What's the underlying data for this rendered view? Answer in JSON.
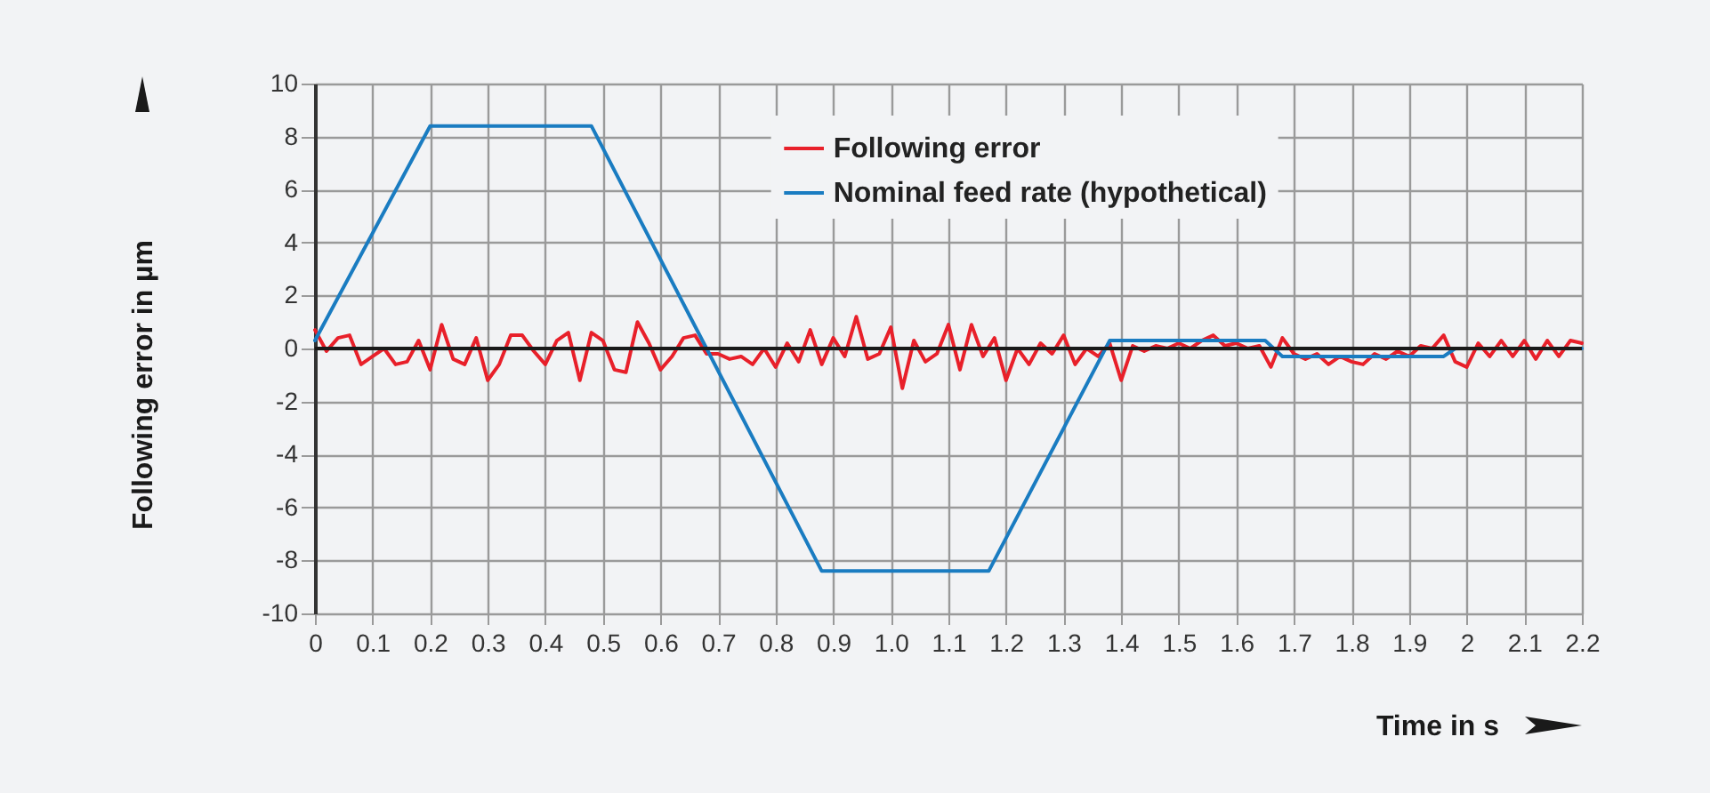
{
  "chart_data": {
    "type": "line",
    "xlabel": "Time in s",
    "ylabel": "Following error in µm",
    "xlim": [
      0,
      2.2
    ],
    "ylim": [
      -10,
      10
    ],
    "xticks": [
      0,
      0.1,
      0.2,
      0.3,
      0.4,
      0.5,
      0.6,
      0.7,
      0.8,
      0.9,
      {
        "value": 1,
        "label": "1.0"
      },
      1.1,
      1.2,
      1.3,
      1.4,
      1.5,
      1.6,
      1.7,
      1.8,
      1.9,
      2,
      2.1,
      2.2
    ],
    "yticks": [
      -10,
      -8,
      -6,
      -4,
      -2,
      0,
      2,
      4,
      6,
      8,
      10
    ],
    "grid": true,
    "legend": "top",
    "line_style": "solid",
    "marker": "none",
    "ref_lines": [
      {
        "axis": "y",
        "value": 0,
        "color": "#1a1a1a"
      }
    ],
    "series": [
      {
        "name": "Following error",
        "color": "#e8202a",
        "x": [
          0,
          0.02,
          0.04,
          0.06,
          0.08,
          0.1,
          0.12,
          0.14,
          0.16,
          0.18,
          0.2,
          0.22,
          0.24,
          0.26,
          0.28,
          0.3,
          0.32,
          0.34,
          0.36,
          0.38,
          0.4,
          0.42,
          0.44,
          0.46,
          0.48,
          0.5,
          0.52,
          0.54,
          0.56,
          0.58,
          0.6,
          0.62,
          0.64,
          0.66,
          0.68,
          0.7,
          0.72,
          0.74,
          0.76,
          0.78,
          0.8,
          0.82,
          0.84,
          0.86,
          0.88,
          0.9,
          0.92,
          0.94,
          0.96,
          0.98,
          1,
          1.02,
          1.04,
          1.06,
          1.08,
          1.1,
          1.12,
          1.14,
          1.16,
          1.18,
          1.2,
          1.22,
          1.24,
          1.26,
          1.28,
          1.3,
          1.32,
          1.34,
          1.36,
          1.38,
          1.4,
          1.42,
          1.44,
          1.46,
          1.48,
          1.5,
          1.52,
          1.54,
          1.56,
          1.58,
          1.6,
          1.62,
          1.64,
          1.66,
          1.68,
          1.7,
          1.72,
          1.74,
          1.76,
          1.78,
          1.8,
          1.82,
          1.84,
          1.86,
          1.88,
          1.9,
          1.92,
          1.94,
          1.96,
          1.98,
          2,
          2.02,
          2.04,
          2.06,
          2.08,
          2.1,
          2.12,
          2.14,
          2.16,
          2.18,
          2.2
        ],
        "values": [
          0.7,
          -0.1,
          0.4,
          0.5,
          -0.6,
          -0.3,
          0.0,
          -0.6,
          -0.5,
          0.3,
          -0.8,
          0.9,
          -0.4,
          -0.6,
          0.4,
          -1.2,
          -0.6,
          0.5,
          0.5,
          -0.1,
          -0.6,
          0.3,
          0.6,
          -1.2,
          0.6,
          0.3,
          -0.8,
          -0.9,
          1.0,
          0.2,
          -0.8,
          -0.3,
          0.4,
          0.5,
          -0.2,
          -0.2,
          -0.4,
          -0.3,
          -0.6,
          0.0,
          -0.7,
          0.2,
          -0.5,
          0.7,
          -0.6,
          0.4,
          -0.3,
          1.2,
          -0.4,
          -0.2,
          0.8,
          -1.5,
          0.3,
          -0.5,
          -0.2,
          0.9,
          -0.8,
          0.9,
          -0.3,
          0.4,
          -1.2,
          0.0,
          -0.6,
          0.2,
          -0.2,
          0.5,
          -0.6,
          0.0,
          -0.3,
          0.2,
          -1.2,
          0.1,
          -0.1,
          0.1,
          0.0,
          0.2,
          0.0,
          0.3,
          0.5,
          0.1,
          0.2,
          0.0,
          0.1,
          -0.7,
          0.4,
          -0.2,
          -0.4,
          -0.2,
          -0.6,
          -0.3,
          -0.5,
          -0.6,
          -0.2,
          -0.4,
          -0.1,
          -0.3,
          0.1,
          0.0,
          0.5,
          -0.5,
          -0.7,
          0.2,
          -0.3,
          0.3,
          -0.3,
          0.3,
          -0.4,
          0.3,
          -0.3,
          0.3,
          0.2
        ]
      },
      {
        "name": "Nominal feed rate (hypothetical)",
        "color": "#1a7cc1",
        "x": [
          0,
          0.2,
          0.48,
          0.68,
          0.88,
          1.17,
          1.38,
          1.65,
          1.68,
          1.96,
          1.98,
          2.2
        ],
        "values": [
          0.3,
          8.4,
          8.4,
          0,
          -8.4,
          -8.4,
          0.3,
          0.3,
          -0.3,
          -0.3,
          0,
          0
        ]
      }
    ]
  }
}
